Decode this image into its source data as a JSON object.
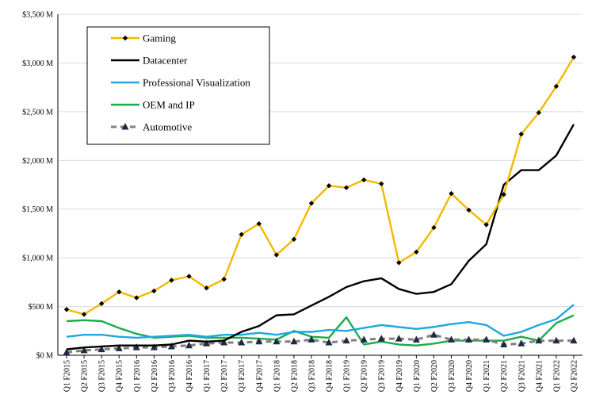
{
  "chart_data": {
    "type": "line",
    "categories": [
      "Q1 F2015",
      "Q2 F2015",
      "Q3 F2015",
      "Q4 F2015",
      "Q1 F2016",
      "Q2 F2016",
      "Q3 F2016",
      "Q4 F2016",
      "Q1 F2017",
      "Q2 F2017",
      "Q3 F2017",
      "Q4 F2017",
      "Q1 F2018",
      "Q2 F2018",
      "Q3 F2018",
      "Q4 F2018",
      "Q1 F2019",
      "Q2 F2019",
      "Q3 F2019",
      "Q4 F2019",
      "Q1 F2020",
      "Q2 F2020",
      "Q3 F2020",
      "Q4 F2020",
      "Q1 F2021",
      "Q2 F2021",
      "Q3 F2021",
      "Q4 F2021",
      "Q1 F2022",
      "Q2 F2022"
    ],
    "ylim": [
      0,
      3500
    ],
    "yticks": [
      0,
      500,
      1000,
      1500,
      2000,
      2500,
      3000,
      3500
    ],
    "ytick_labels": [
      "$0 M",
      "$500 M",
      "$1,000 M",
      "$1,500 M",
      "$2,000 M",
      "$2,500 M",
      "$3,000 M",
      "$3,500 M"
    ],
    "title": "",
    "xlabel": "",
    "ylabel": "",
    "grid": "horizontal",
    "legend_position": "top-left",
    "series": [
      {
        "name": "Gaming",
        "color": "#f5b800",
        "marker": "diamond",
        "dash": "solid",
        "values": [
          470,
          420,
          530,
          650,
          590,
          660,
          770,
          810,
          690,
          780,
          1240,
          1350,
          1030,
          1190,
          1560,
          1740,
          1720,
          1800,
          1760,
          950,
          1060,
          1310,
          1660,
          1490,
          1340,
          1650,
          2270,
          2490,
          2760,
          3060
        ]
      },
      {
        "name": "Datacenter",
        "color": "#000000",
        "marker": "none",
        "dash": "solid",
        "values": [
          60,
          80,
          90,
          100,
          100,
          100,
          110,
          150,
          140,
          150,
          240,
          300,
          410,
          420,
          510,
          600,
          700,
          760,
          790,
          680,
          630,
          650,
          730,
          970,
          1140,
          1750,
          1900,
          1900,
          2050,
          2370
        ]
      },
      {
        "name": "Professional Visualization",
        "color": "#1ea7e1",
        "marker": "none",
        "dash": "solid",
        "values": [
          190,
          210,
          210,
          190,
          180,
          190,
          200,
          210,
          190,
          210,
          210,
          230,
          210,
          240,
          240,
          260,
          250,
          280,
          310,
          290,
          270,
          290,
          320,
          340,
          310,
          200,
          240,
          310,
          370,
          520
        ]
      },
      {
        "name": "OEM and IP",
        "color": "#1aab4b",
        "marker": "none",
        "dash": "solid",
        "values": [
          350,
          360,
          350,
          280,
          220,
          180,
          190,
          200,
          180,
          180,
          180,
          170,
          160,
          250,
          190,
          180,
          390,
          110,
          140,
          110,
          100,
          120,
          150,
          150,
          150,
          150,
          190,
          150,
          330,
          410
        ]
      },
      {
        "name": "Automotive",
        "color": "#808080",
        "marker": "triangle",
        "dash": "dashed",
        "values": [
          30,
          50,
          60,
          70,
          80,
          80,
          90,
          100,
          120,
          130,
          130,
          140,
          140,
          140,
          160,
          130,
          150,
          160,
          170,
          170,
          160,
          210,
          160,
          160,
          160,
          110,
          120,
          150,
          150,
          150
        ]
      }
    ]
  }
}
